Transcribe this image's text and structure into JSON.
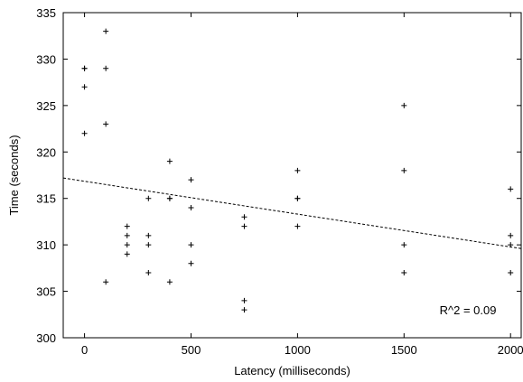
{
  "chart_data": {
    "type": "scatter",
    "xlabel": "Latency (milliseconds)",
    "ylabel": "Time (seconds)",
    "xlim": [
      -100,
      2050
    ],
    "ylim": [
      300,
      335
    ],
    "xticks": [
      0,
      500,
      1000,
      1500,
      2000
    ],
    "yticks": [
      300,
      305,
      310,
      315,
      320,
      325,
      330,
      335
    ],
    "grid": false,
    "points": [
      {
        "x": 0,
        "y": 329
      },
      {
        "x": 0,
        "y": 329
      },
      {
        "x": 0,
        "y": 327
      },
      {
        "x": 0,
        "y": 322
      },
      {
        "x": 100,
        "y": 333
      },
      {
        "x": 100,
        "y": 329
      },
      {
        "x": 100,
        "y": 323
      },
      {
        "x": 100,
        "y": 306
      },
      {
        "x": 200,
        "y": 312
      },
      {
        "x": 200,
        "y": 311
      },
      {
        "x": 200,
        "y": 310
      },
      {
        "x": 200,
        "y": 309
      },
      {
        "x": 300,
        "y": 315
      },
      {
        "x": 300,
        "y": 311
      },
      {
        "x": 300,
        "y": 310
      },
      {
        "x": 300,
        "y": 307
      },
      {
        "x": 400,
        "y": 319
      },
      {
        "x": 400,
        "y": 315
      },
      {
        "x": 400,
        "y": 315
      },
      {
        "x": 400,
        "y": 306
      },
      {
        "x": 500,
        "y": 317
      },
      {
        "x": 500,
        "y": 314
      },
      {
        "x": 500,
        "y": 310
      },
      {
        "x": 500,
        "y": 308
      },
      {
        "x": 750,
        "y": 313
      },
      {
        "x": 750,
        "y": 312
      },
      {
        "x": 750,
        "y": 304
      },
      {
        "x": 750,
        "y": 303
      },
      {
        "x": 1000,
        "y": 318
      },
      {
        "x": 1000,
        "y": 315
      },
      {
        "x": 1000,
        "y": 315
      },
      {
        "x": 1000,
        "y": 312
      },
      {
        "x": 1500,
        "y": 325
      },
      {
        "x": 1500,
        "y": 318
      },
      {
        "x": 1500,
        "y": 310
      },
      {
        "x": 1500,
        "y": 307
      },
      {
        "x": 2000,
        "y": 316
      },
      {
        "x": 2000,
        "y": 311
      },
      {
        "x": 2000,
        "y": 310
      },
      {
        "x": 2000,
        "y": 307
      }
    ],
    "trendline": {
      "x": [
        -100,
        2050
      ],
      "y": [
        317.2,
        309.6
      ],
      "style": "dashed"
    },
    "annotation": "R^2 = 0.09"
  }
}
